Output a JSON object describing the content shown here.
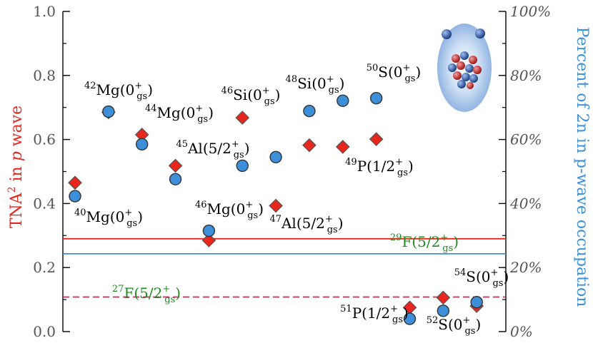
{
  "chart_data": {
    "type": "scatter",
    "left_axis": {
      "label_parts": [
        "TNA",
        "2",
        " in ",
        "p",
        " wave"
      ],
      "range": [
        0.0,
        1.0
      ],
      "ticks": [
        {
          "value": 0.0,
          "label": "0.0"
        },
        {
          "value": 0.2,
          "label": "0.2"
        },
        {
          "value": 0.4,
          "label": "0.4"
        },
        {
          "value": 0.6,
          "label": "0.6"
        },
        {
          "value": 0.8,
          "label": "0.8"
        },
        {
          "value": 1.0,
          "label": "1.0"
        }
      ],
      "color": "#e8261e"
    },
    "right_axis": {
      "label": "Percent of 2n in p-wave occupation",
      "range": [
        0,
        100
      ],
      "ticks": [
        {
          "value": 0,
          "label": "0%"
        },
        {
          "value": 20,
          "label": "20%"
        },
        {
          "value": 40,
          "label": "40%"
        },
        {
          "value": 60,
          "label": "60%"
        },
        {
          "value": 80,
          "label": "80%"
        },
        {
          "value": 100,
          "label": "100%"
        }
      ],
      "color": "#3d8fd9"
    },
    "x_range": [
      0,
      13
    ],
    "series": [
      {
        "marker": "diamond",
        "color": "#e8261e",
        "axis": "left",
        "points": [
          {
            "x": 1,
            "y": 0.465
          },
          {
            "x": 2,
            "y": 0.685
          },
          {
            "x": 3,
            "y": 0.615
          },
          {
            "x": 4,
            "y": 0.518
          },
          {
            "x": 5,
            "y": 0.285
          },
          {
            "x": 6,
            "y": 0.668
          },
          {
            "x": 7,
            "y": 0.393
          },
          {
            "x": 8,
            "y": 0.582
          },
          {
            "x": 9,
            "y": 0.577
          },
          {
            "x": 10,
            "y": 0.601
          },
          {
            "x": 11,
            "y": 0.075
          },
          {
            "x": 12,
            "y": 0.106
          },
          {
            "x": 13,
            "y": 0.08
          }
        ]
      },
      {
        "marker": "circle",
        "color": "#3d8fd9",
        "axis": "right",
        "points": [
          {
            "x": 1,
            "y": 42.3
          },
          {
            "x": 2,
            "y": 68.7
          },
          {
            "x": 3,
            "y": 58.5
          },
          {
            "x": 4,
            "y": 47.6
          },
          {
            "x": 5,
            "y": 31.5
          },
          {
            "x": 6,
            "y": 51.8
          },
          {
            "x": 7,
            "y": 54.5
          },
          {
            "x": 8,
            "y": 68.9
          },
          {
            "x": 9,
            "y": 72.1
          },
          {
            "x": 10,
            "y": 72.9
          },
          {
            "x": 11,
            "y": 4.0
          },
          {
            "x": 12,
            "y": 6.5
          },
          {
            "x": 13,
            "y": 9.2
          }
        ]
      }
    ],
    "reference_lines": [
      {
        "axis": "left",
        "value": 0.29,
        "color": "#e8261e",
        "style": "solid"
      },
      {
        "axis": "left",
        "value": 0.243,
        "color": "#3d8fd9",
        "style": "solid"
      },
      {
        "axis": "left",
        "value": 0.108,
        "color": "#b23a5a",
        "style": "dashed"
      }
    ],
    "annotations": [
      {
        "id": "ann-40mg",
        "base": "Mg(0",
        "sup_pre": "40",
        "sup_mid": "+",
        "sub": "gs",
        "tail": ")",
        "color": "#000000",
        "ax": 152,
        "ay": 311
      },
      {
        "id": "ann-42mg",
        "base": "Mg(0",
        "sup_pre": "42",
        "sup_mid": "+",
        "sub": "gs",
        "tail": ")",
        "color": "#000000",
        "ax": 166,
        "ay": 133
      },
      {
        "id": "ann-44mg",
        "base": "Mg(0",
        "sup_pre": "44",
        "sup_mid": "+",
        "sub": "gs",
        "tail": ")",
        "color": "#000000",
        "ax": 251,
        "ay": 165
      },
      {
        "id": "ann-45al",
        "base": "Al(5/2",
        "sup_pre": "45",
        "sup_mid": "+",
        "sub": "gs",
        "tail": ")",
        "color": "#000000",
        "ax": 298,
        "ay": 215
      },
      {
        "id": "ann-46mg",
        "base": "Mg(0",
        "sup_pre": "46",
        "sup_mid": "+",
        "sub": "gs",
        "tail": ")",
        "color": "#000000",
        "ax": 321,
        "ay": 300
      },
      {
        "id": "ann-46si",
        "base": "Si(0",
        "sup_pre": "46",
        "sup_mid": "+",
        "sub": "gs",
        "tail": ")",
        "color": "#000000",
        "ax": 351,
        "ay": 140
      },
      {
        "id": "ann-47al",
        "base": "Al(5/2",
        "sup_pre": "47",
        "sup_mid": "+",
        "sub": "gs",
        "tail": ")",
        "color": "#000000",
        "ax": 429,
        "ay": 320
      },
      {
        "id": "ann-48si",
        "base": "Si(0",
        "sup_pre": "48",
        "sup_mid": "+",
        "sub": "gs",
        "tail": ")",
        "color": "#000000",
        "ax": 441,
        "ay": 124
      },
      {
        "id": "ann-49p",
        "base": "P(1/2",
        "sup_pre": "49",
        "sup_mid": "+",
        "sub": "gs",
        "tail": ")",
        "color": "#000000",
        "ax": 531,
        "ay": 240
      },
      {
        "id": "ann-50s",
        "base": "S(0",
        "sup_pre": "50",
        "sup_mid": "+",
        "sub": "gs",
        "tail": ")",
        "color": "#000000",
        "ax": 551,
        "ay": 108
      },
      {
        "id": "ann-51p",
        "base": "P(1/2",
        "sup_pre": "51",
        "sup_mid": "+",
        "sub": "gs",
        "tail": ")",
        "color": "#000000",
        "ax": 524,
        "ay": 446
      },
      {
        "id": "ann-52s",
        "base": "S(0",
        "sup_pre": "52",
        "sup_mid": "+",
        "sub": "gs",
        "tail": ")",
        "color": "#000000",
        "ax": 635,
        "ay": 462
      },
      {
        "id": "ann-54s",
        "base": "S(0",
        "sup_pre": "54",
        "sup_mid": "+",
        "sub": "gs",
        "tail": ")",
        "color": "#000000",
        "ax": 674,
        "ay": 395
      },
      {
        "id": "ann-29f",
        "base": "F(5/2",
        "sup_pre": "29",
        "sup_mid": "+",
        "sub": "gs",
        "tail": ")",
        "color": "#1f8a1f",
        "ax": 594,
        "ay": 346
      },
      {
        "id": "ann-27f",
        "base": "F(5/2",
        "sup_pre": "27",
        "sup_mid": "+",
        "sub": "gs",
        "tail": ")",
        "color": "#1f8a1f",
        "ax": 205,
        "ay": 418
      }
    ],
    "inset_icon": "halo-nucleus-icon"
  }
}
